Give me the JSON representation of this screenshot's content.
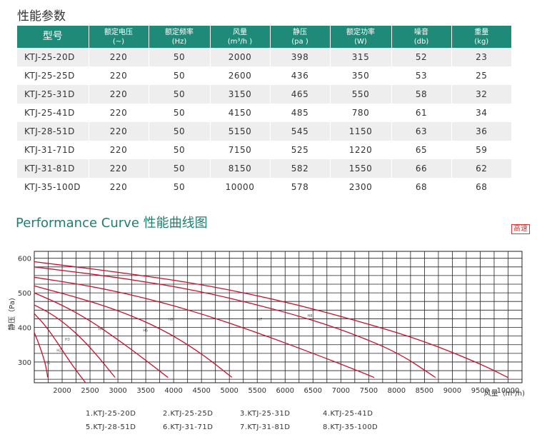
{
  "page": {
    "section_title": "性能参数",
    "curve_title": "Performance Curve 性能曲线图",
    "speed_badge": "高速"
  },
  "table": {
    "headers": [
      {
        "line1": "型号",
        "line2": ""
      },
      {
        "line1": "额定电压",
        "line2": "(~)"
      },
      {
        "line1": "额定频率",
        "line2": "(Hz)"
      },
      {
        "line1": "风量",
        "line2": "(m³/h )"
      },
      {
        "line1": "静压",
        "line2": "(pa )"
      },
      {
        "line1": "额定功率",
        "line2": "(W)"
      },
      {
        "line1": "噪音",
        "line2": "(db)"
      },
      {
        "line1": "重量",
        "line2": "(kg)"
      }
    ],
    "rows": [
      [
        "KTJ-25-20D",
        "220",
        "50",
        "2000",
        "398",
        "315",
        "52",
        "23"
      ],
      [
        "KTJ-25-25D",
        "220",
        "50",
        "2600",
        "436",
        "350",
        "53",
        "25"
      ],
      [
        "KTJ-25-31D",
        "220",
        "50",
        "3150",
        "465",
        "550",
        "58",
        "32"
      ],
      [
        "KTJ-25-41D",
        "220",
        "50",
        "4150",
        "485",
        "780",
        "61",
        "34"
      ],
      [
        "KTJ-28-51D",
        "220",
        "50",
        "5150",
        "545",
        "1150",
        "63",
        "36"
      ],
      [
        "KTJ-31-71D",
        "220",
        "50",
        "7150",
        "525",
        "1220",
        "65",
        "59"
      ],
      [
        "KTJ-31-81D",
        "220",
        "50",
        "8150",
        "582",
        "1550",
        "66",
        "62"
      ],
      [
        "KTJ-35-100D",
        "220",
        "50",
        "10000",
        "578",
        "2300",
        "68",
        "68"
      ]
    ]
  },
  "chart_data": {
    "type": "line",
    "title": "",
    "xlabel": "风量（m³/h)",
    "ylabel": "静压（Pa)",
    "xlim": [
      1500,
      10250
    ],
    "ylim": [
      240,
      620
    ],
    "x_ticks": [
      2000,
      2500,
      3000,
      3500,
      4000,
      4500,
      5000,
      5500,
      6000,
      6500,
      7000,
      7500,
      8000,
      8500,
      9000,
      9500,
      10000
    ],
    "y_ticks": [
      300,
      400,
      500,
      600
    ],
    "grid": true,
    "line_color": "#c8102e",
    "series": [
      {
        "name": "H1",
        "label_at": [
          1700,
          295
        ],
        "points": [
          [
            1500,
            385
          ],
          [
            1560,
            362
          ],
          [
            1620,
            335
          ],
          [
            1680,
            305
          ],
          [
            1720,
            278
          ],
          [
            1740,
            255
          ]
        ]
      },
      {
        "name": "H2",
        "label_at": [
          1900,
          330
        ],
        "points": [
          [
            1500,
            440
          ],
          [
            1700,
            405
          ],
          [
            1900,
            360
          ],
          [
            2100,
            310
          ],
          [
            2300,
            265
          ],
          [
            2420,
            240
          ]
        ]
      },
      {
        "name": "H3",
        "label_at": [
          2050,
          362
        ],
        "points": [
          [
            1500,
            465
          ],
          [
            1800,
            440
          ],
          [
            2100,
            405
          ],
          [
            2400,
            360
          ],
          [
            2700,
            305
          ],
          [
            2950,
            255
          ]
        ]
      },
      {
        "name": "H4",
        "label_at": [
          2650,
          392
        ],
        "points": [
          [
            1500,
            500
          ],
          [
            2000,
            465
          ],
          [
            2500,
            420
          ],
          [
            3000,
            365
          ],
          [
            3500,
            305
          ],
          [
            3900,
            255
          ]
        ]
      },
      {
        "name": "H5",
        "label_at": [
          3450,
          388
        ],
        "points": [
          [
            1500,
            520
          ],
          [
            2200,
            490
          ],
          [
            3000,
            450
          ],
          [
            3800,
            395
          ],
          [
            4500,
            325
          ],
          [
            5050,
            255
          ]
        ]
      },
      {
        "name": "H6",
        "label_at": [
          3900,
          420
        ],
        "points": [
          [
            1500,
            545
          ],
          [
            2500,
            520
          ],
          [
            3500,
            485
          ],
          [
            4500,
            440
          ],
          [
            5500,
            385
          ],
          [
            6500,
            325
          ],
          [
            7300,
            275
          ],
          [
            7600,
            255
          ]
        ]
      },
      {
        "name": "H7",
        "label_at": [
          5500,
          420
        ],
        "points": [
          [
            1500,
            575
          ],
          [
            3000,
            545
          ],
          [
            4500,
            505
          ],
          [
            6000,
            445
          ],
          [
            7000,
            395
          ],
          [
            8000,
            330
          ],
          [
            8700,
            255
          ]
        ]
      },
      {
        "name": "H8",
        "label_at": [
          6400,
          430
        ],
        "points": [
          [
            1500,
            590
          ],
          [
            3000,
            560
          ],
          [
            4500,
            525
          ],
          [
            6000,
            475
          ],
          [
            7500,
            410
          ],
          [
            8500,
            360
          ],
          [
            9500,
            295
          ],
          [
            10000,
            255
          ]
        ]
      }
    ]
  },
  "legend": {
    "items": [
      "1.KTJ-25-20D",
      "2.KTJ-25-25D",
      "3.KTJ-25-31D",
      "4.KTJ-25-41D",
      "5.KTJ-28-51D",
      "6.KTJ-31-71D",
      "7.KTJ-31-81D",
      "8.KTJ-35-100D"
    ]
  }
}
